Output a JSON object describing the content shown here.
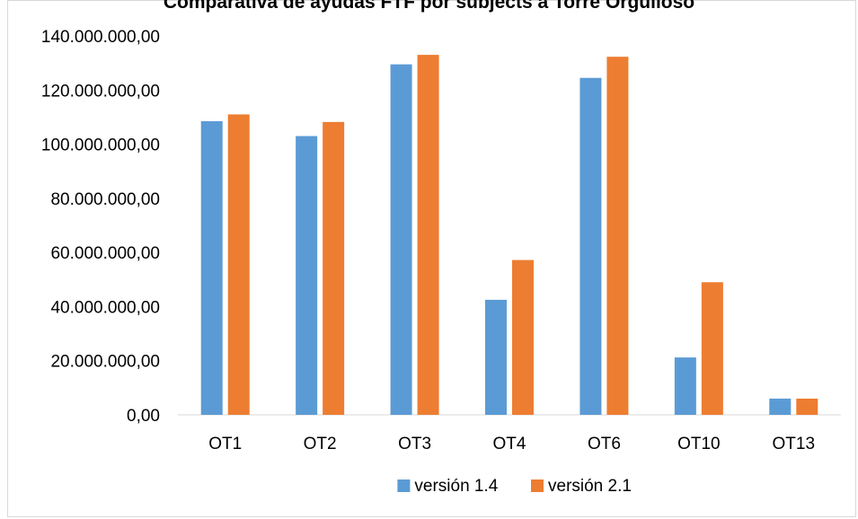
{
  "chart_data": {
    "type": "bar",
    "title": "Comparativa de ayudas FTF por subjects a Torre Orgulloso",
    "categories": [
      "OT1",
      "OT2",
      "OT3",
      "OT4",
      "OT6",
      "OT10",
      "OT13"
    ],
    "series": [
      {
        "name": "versión 1.4",
        "color": "#5b9bd5",
        "values": [
          108500000,
          103000000,
          129500000,
          42500000,
          124500000,
          21200000,
          6000000
        ]
      },
      {
        "name": "versión 2.1",
        "color": "#ed7d31",
        "values": [
          111000000,
          108200000,
          133000000,
          57200000,
          132300000,
          49000000,
          6000000
        ]
      }
    ],
    "ylim": [
      0,
      140000000
    ],
    "yticks": [
      "0,00",
      "20.000.000,00",
      "40.000.000,00",
      "60.000.000,00",
      "80.000.000,00",
      "100.000.000,00",
      "120.000.000,00",
      "140.000.000,00"
    ],
    "ytick_values": [
      0,
      20000000,
      40000000,
      60000000,
      80000000,
      100000000,
      120000000,
      140000000
    ],
    "xlabel": "",
    "ylabel": "",
    "grid": false,
    "legend_position": "bottom"
  }
}
